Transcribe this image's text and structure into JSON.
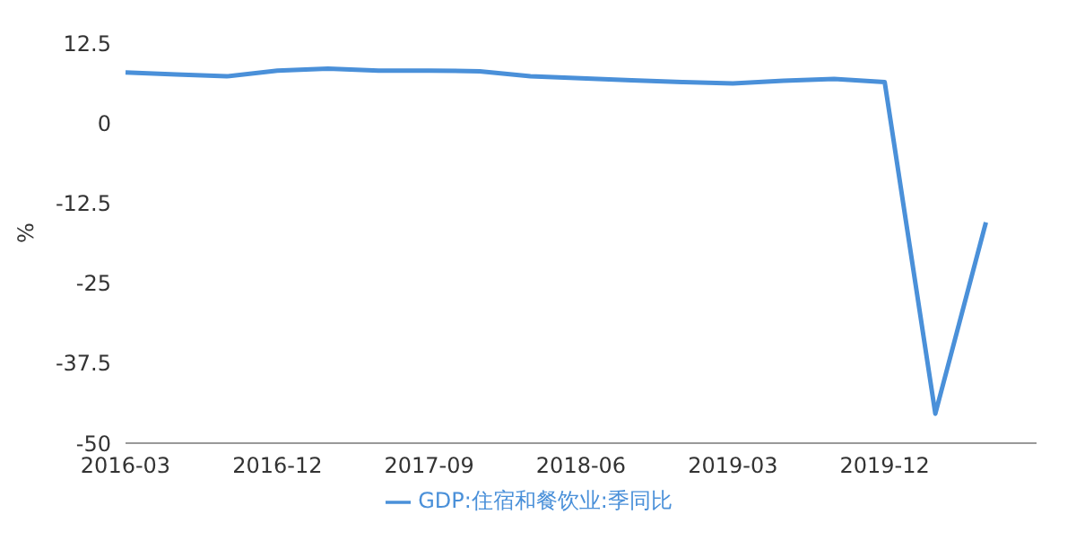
{
  "chart_data": {
    "type": "line",
    "ylabel": "%",
    "categories": [
      "2016-03",
      null,
      null,
      "2016-12",
      null,
      null,
      "2017-09",
      null,
      null,
      "2018-06",
      null,
      null,
      "2019-03",
      null,
      null,
      "2019-12",
      null,
      null,
      null
    ],
    "series": [
      {
        "name": "GDP:住宿和餐饮业:季同比",
        "color": "#4a90d9",
        "values": [
          7.9,
          7.6,
          7.3,
          8.2,
          8.5,
          8.2,
          8.2,
          8.1,
          7.3,
          7.0,
          6.7,
          6.4,
          6.2,
          6.6,
          6.9,
          6.4,
          -45.4,
          -15.5,
          null
        ]
      }
    ],
    "ylim": [
      -50,
      12.5
    ],
    "yticks": [
      -50,
      -37.5,
      -25,
      -12.5,
      0,
      12.5
    ],
    "grid": false,
    "legend": "bottom",
    "marker": "none",
    "line_style": "solid"
  }
}
